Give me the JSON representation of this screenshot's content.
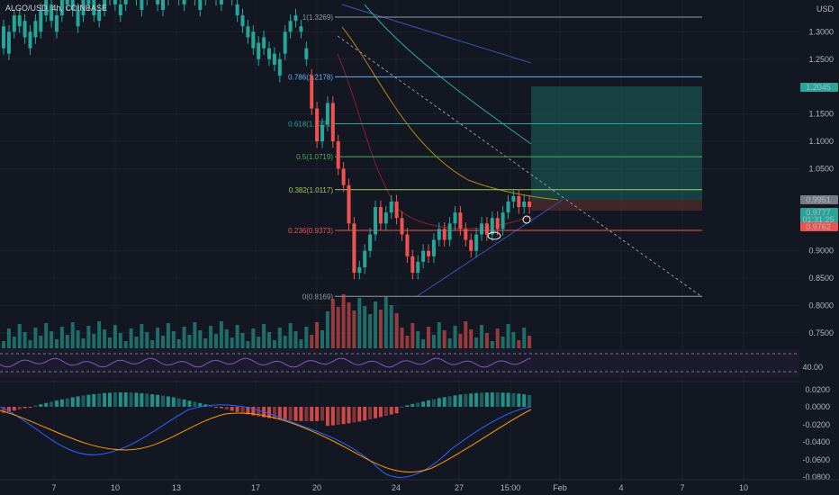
{
  "header": {
    "title": "ALGO/USD, 4h, COINBASE",
    "currency": "USD"
  },
  "colors": {
    "background": "#131722",
    "up": "#26a69a",
    "down": "#ef5350",
    "grid": "#1e222d",
    "text": "#b2b5be",
    "fib": "#9598a1",
    "long_zone": "#1b5e57"
  },
  "price_badges": [
    {
      "value": "1.2045",
      "bg": "#26a69a",
      "fg": "#131722"
    },
    {
      "value": "0.9951",
      "bg": "#787b86",
      "fg": "#ffffff"
    },
    {
      "value": "0.9777",
      "sub": "01:31:25",
      "bg": "#26a69a",
      "fg": "#ffffff"
    },
    {
      "value": "0.9762",
      "bg": "#ef5350",
      "fg": "#ffffff"
    }
  ],
  "chart_data": [
    {
      "type": "candlestick",
      "title": "ALGO/USD, 4h, COINBASE",
      "ylim": [
        0.725,
        1.355
      ],
      "y_ticks": [
        "1.3000",
        "1.2500",
        "1.1500",
        "1.1000",
        "1.0500",
        "0.9000",
        "0.8500",
        "0.8000",
        "0.7500"
      ],
      "x_ticks": [
        "7",
        "10",
        "13",
        "17",
        "20",
        "24",
        "27",
        "15:00",
        "Feb",
        "4",
        "7",
        "10"
      ],
      "fib_levels": [
        {
          "label": "1(1.3269)",
          "price": 1.3269,
          "color": "#9598a1"
        },
        {
          "label": "0.786(1.2178)",
          "price": 1.2178,
          "color": "#64b5f6"
        },
        {
          "label": "0.618(1.1321)",
          "price": 1.1321,
          "color": "#26a69a"
        },
        {
          "label": "0.5(1.0719)",
          "price": 1.0719,
          "color": "#4caf50"
        },
        {
          "label": "0.382(1.0117)",
          "price": 1.0117,
          "color": "#9ccc65"
        },
        {
          "label": "0.236(0.9373)",
          "price": 0.9373,
          "color": "#ef5350"
        },
        {
          "label": "0(0.8169)",
          "price": 0.8169,
          "color": "#9598a1"
        }
      ],
      "long_position": {
        "entry": 0.9951,
        "stop": 0.9762,
        "target": 1.2045
      },
      "last_price": 0.9777,
      "approx_path": [
        [
          1.27,
          1.31
        ],
        [
          1.26,
          1.3
        ],
        [
          1.3,
          1.33
        ],
        [
          1.31,
          1.33
        ],
        [
          1.29,
          1.32
        ],
        [
          1.27,
          1.3
        ],
        [
          1.29,
          1.32
        ],
        [
          1.3,
          1.34
        ],
        [
          1.33,
          1.36
        ],
        [
          1.32,
          1.35
        ],
        [
          1.3,
          1.33
        ],
        [
          1.33,
          1.36
        ],
        [
          1.35,
          1.37
        ],
        [
          1.34,
          1.36
        ],
        [
          1.31,
          1.34
        ],
        [
          1.33,
          1.36
        ],
        [
          1.35,
          1.37
        ],
        [
          1.33,
          1.36
        ],
        [
          1.32,
          1.34
        ],
        [
          1.34,
          1.36
        ],
        [
          1.36,
          1.38
        ],
        [
          1.35,
          1.37
        ],
        [
          1.33,
          1.35
        ],
        [
          1.35,
          1.37
        ],
        [
          1.37,
          1.38
        ],
        [
          1.36,
          1.38
        ],
        [
          1.34,
          1.36
        ],
        [
          1.36,
          1.38
        ],
        [
          1.37,
          1.38
        ],
        [
          1.35,
          1.37
        ],
        [
          1.34,
          1.36
        ],
        [
          1.36,
          1.38
        ],
        [
          1.37,
          1.38
        ],
        [
          1.36,
          1.38
        ],
        [
          1.35,
          1.37
        ],
        [
          1.37,
          1.38
        ],
        [
          1.36,
          1.38
        ],
        [
          1.34,
          1.36
        ],
        [
          1.36,
          1.38
        ],
        [
          1.37,
          1.38
        ],
        [
          1.36,
          1.37
        ],
        [
          1.35,
          1.37
        ],
        [
          1.37,
          1.38
        ],
        [
          1.36,
          1.38
        ],
        [
          1.33,
          1.35
        ],
        [
          1.31,
          1.33
        ],
        [
          1.29,
          1.31
        ],
        [
          1.27,
          1.3
        ],
        [
          1.25,
          1.28
        ],
        [
          1.27,
          1.29
        ],
        [
          1.25,
          1.27
        ],
        [
          1.24,
          1.26
        ],
        [
          1.22,
          1.25
        ],
        [
          1.26,
          1.3
        ],
        [
          1.3,
          1.32
        ],
        [
          1.32,
          1.33
        ],
        [
          1.3,
          1.31
        ],
        [
          1.25,
          1.27
        ],
        [
          1.22,
          1.16
        ],
        [
          1.16,
          1.1
        ],
        [
          1.1,
          1.13
        ],
        [
          1.13,
          1.17
        ],
        [
          1.17,
          1.1
        ],
        [
          1.1,
          1.05
        ],
        [
          1.05,
          1.02
        ],
        [
          1.02,
          0.95
        ],
        [
          0.95,
          0.86
        ],
        [
          0.86,
          0.87
        ],
        [
          0.87,
          0.9
        ],
        [
          0.9,
          0.93
        ],
        [
          0.93,
          0.98
        ],
        [
          0.98,
          0.95
        ],
        [
          0.95,
          0.97
        ],
        [
          0.97,
          0.99
        ],
        [
          0.99,
          0.96
        ],
        [
          0.96,
          0.93
        ],
        [
          0.93,
          0.89
        ],
        [
          0.89,
          0.86
        ],
        [
          0.86,
          0.88
        ],
        [
          0.88,
          0.9
        ],
        [
          0.9,
          0.89
        ],
        [
          0.89,
          0.92
        ],
        [
          0.92,
          0.94
        ],
        [
          0.94,
          0.92
        ],
        [
          0.92,
          0.95
        ],
        [
          0.95,
          0.97
        ],
        [
          0.97,
          0.94
        ],
        [
          0.94,
          0.92
        ],
        [
          0.92,
          0.9
        ],
        [
          0.9,
          0.93
        ],
        [
          0.93,
          0.95
        ],
        [
          0.95,
          0.93
        ],
        [
          0.93,
          0.96
        ],
        [
          0.96,
          0.94
        ],
        [
          0.94,
          0.97
        ],
        [
          0.97,
          0.99
        ],
        [
          0.99,
          1.0
        ],
        [
          1.0,
          0.98
        ],
        [
          0.98,
          0.99
        ],
        [
          0.99,
          0.98
        ]
      ]
    },
    {
      "type": "line",
      "title": "",
      "ylim": [
        30,
        60
      ],
      "y_ticks": [
        "40.00"
      ],
      "note": "RSI pane"
    },
    {
      "type": "bar",
      "title": "",
      "ylim": [
        -0.09,
        0.025
      ],
      "y_ticks": [
        "0.0200",
        "0.0000",
        "-0.0200",
        "-0.0400",
        "-0.0600",
        "-0.0800"
      ],
      "note": "MACD histogram pane"
    }
  ]
}
